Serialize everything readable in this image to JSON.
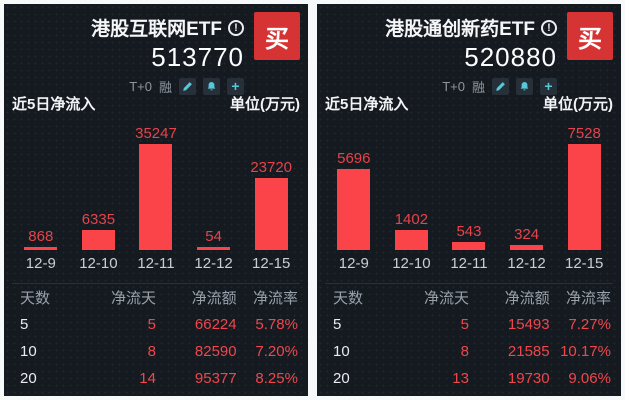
{
  "colors": {
    "page_bg": "#f7f8f9",
    "card_bg": "#151a21",
    "buy_red": "#d63434",
    "bar_red": "#fb4449",
    "value_red": "#ef474c",
    "icon_teal": "#55c9d9",
    "gray_text": "#99a1ab",
    "white_text": "#f2f4f6"
  },
  "cards": [
    {
      "title": "港股互联网ETF",
      "code": "513770",
      "buy_label": "买",
      "info_icon": "!",
      "badges": {
        "t0": "T+0",
        "margin": "融"
      },
      "toolbar_icons": [
        "edit-icon",
        "alert-icon",
        "add-icon"
      ],
      "section_title": "近5日净流入",
      "unit_label": "单位(万元)",
      "chart_data": {
        "type": "bar",
        "title": "近5日净流入",
        "ylabel": "万元",
        "categories": [
          "12-9",
          "12-10",
          "12-11",
          "12-12",
          "12-15"
        ],
        "values": [
          868,
          6335,
          35247,
          54,
          23720
        ]
      },
      "table": {
        "headers": [
          "天数",
          "净流天",
          "净流额",
          "净流率"
        ],
        "rows": [
          [
            "5",
            "5",
            "66224",
            "5.78%"
          ],
          [
            "10",
            "8",
            "82590",
            "7.20%"
          ],
          [
            "20",
            "14",
            "95377",
            "8.25%"
          ]
        ]
      }
    },
    {
      "title": "港股通创新药ETF",
      "code": "520880",
      "buy_label": "买",
      "info_icon": "!",
      "badges": {
        "t0": "T+0",
        "margin": "融"
      },
      "toolbar_icons": [
        "edit-icon",
        "alert-icon",
        "add-icon"
      ],
      "section_title": "近5日净流入",
      "unit_label": "单位(万元)",
      "chart_data": {
        "type": "bar",
        "title": "近5日净流入",
        "ylabel": "万元",
        "categories": [
          "12-9",
          "12-10",
          "12-11",
          "12-12",
          "12-15"
        ],
        "values": [
          5696,
          1402,
          543,
          324,
          7528
        ]
      },
      "table": {
        "headers": [
          "天数",
          "净流天",
          "净流额",
          "净流率"
        ],
        "rows": [
          [
            "5",
            "5",
            "15493",
            "7.27%"
          ],
          [
            "10",
            "8",
            "21585",
            "10.17%"
          ],
          [
            "20",
            "13",
            "19730",
            "9.06%"
          ]
        ]
      }
    }
  ]
}
